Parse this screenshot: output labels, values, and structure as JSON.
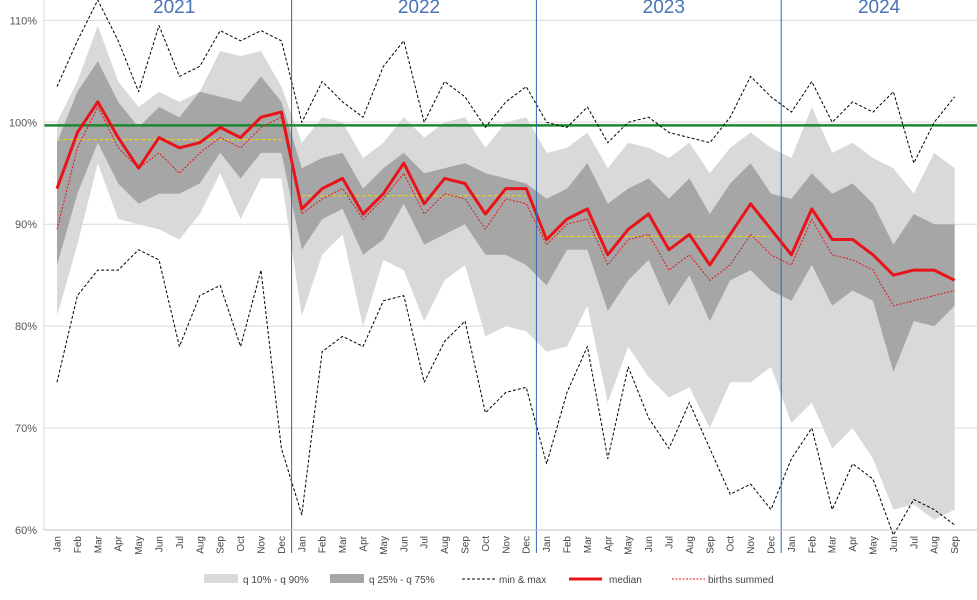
{
  "chart_data": {
    "type": "area",
    "title": "",
    "xlabel": "",
    "ylabel": "",
    "ylim": [
      60,
      112
    ],
    "y_ticks": [
      "60%",
      "70%",
      "80%",
      "90%",
      "100%",
      "110%"
    ],
    "y_tick_values": [
      60,
      70,
      80,
      90,
      100,
      110
    ],
    "years": [
      "2021",
      "2022",
      "2023",
      "2024"
    ],
    "year_dividers_after_index": [
      11,
      23,
      35
    ],
    "months": [
      "Jan",
      "Feb",
      "Mar",
      "Apr",
      "May",
      "Jun",
      "Jul",
      "Aug",
      "Sep",
      "Oct",
      "Nov",
      "Dec",
      "Jan",
      "Feb",
      "Mar",
      "Apr",
      "May",
      "Jun",
      "Jul",
      "Aug",
      "Sep",
      "Oct",
      "Nov",
      "Dec",
      "Jan",
      "Feb",
      "Mar",
      "Apr",
      "May",
      "Jun",
      "Jul",
      "Aug",
      "Sep",
      "Oct",
      "Nov",
      "Dec",
      "Jan",
      "Feb",
      "Mar",
      "Apr",
      "May",
      "Jun",
      "Jul",
      "Aug",
      "Sep"
    ],
    "reference_line": {
      "name": "100% reference",
      "value": 99.7,
      "color": "#1a8a2e"
    },
    "yearly_means": [
      {
        "year": "2021",
        "value": 98.3
      },
      {
        "year": "2022",
        "value": 92.8
      },
      {
        "year": "2023",
        "value": 88.8
      }
    ],
    "series": [
      {
        "name": "q 10% - q 90% low",
        "values": [
          81,
          88,
          96,
          90.5,
          90,
          89.5,
          88.5,
          91,
          95,
          90.5,
          94.5,
          94.5,
          81,
          87,
          89,
          80,
          86.5,
          85.5,
          80.5,
          84.5,
          86,
          79,
          80,
          79.5,
          77.5,
          78,
          82,
          72.5,
          78,
          75,
          73,
          74,
          70,
          74.5,
          74.5,
          76,
          70.5,
          72.5,
          68,
          70,
          67,
          62,
          62.5,
          61,
          62
        ]
      },
      {
        "name": "q 10% - q 90% high",
        "values": [
          100,
          104,
          109.5,
          104,
          101.5,
          103,
          102,
          103,
          107,
          106.5,
          107,
          103.5,
          98,
          100.5,
          100,
          96.5,
          98,
          100.5,
          98.5,
          100,
          100.5,
          97.5,
          100,
          100.5,
          97,
          97.5,
          99,
          95.5,
          98,
          97.5,
          96.5,
          98,
          95,
          97.5,
          99,
          97.5,
          96.5,
          101.5,
          97,
          98,
          96.5,
          95.5,
          93,
          97,
          95.5
        ]
      },
      {
        "name": "q 25% - q 75% low",
        "values": [
          86,
          93,
          98,
          94,
          92,
          93,
          93,
          94,
          97,
          94.5,
          97,
          97,
          87.5,
          90.5,
          91.5,
          87,
          88.5,
          92,
          88,
          89,
          90,
          87,
          87,
          86,
          84,
          87.5,
          87.5,
          81.5,
          84.5,
          86.5,
          82,
          85,
          80.5,
          84.5,
          85.5,
          83.5,
          82.5,
          86,
          82,
          83.5,
          82.5,
          75.5,
          80.5,
          80,
          82
        ]
      },
      {
        "name": "q 25% - q 75% high",
        "values": [
          98,
          103,
          106,
          102,
          99.5,
          101.5,
          100.5,
          103,
          102.5,
          102,
          104.5,
          102,
          95.5,
          96.5,
          97,
          93.5,
          95.5,
          97,
          95,
          95.5,
          96,
          95,
          94.5,
          94,
          92.5,
          93.5,
          96,
          92,
          93.5,
          94.5,
          92.5,
          94.5,
          91,
          94,
          96,
          93,
          92.5,
          95,
          93,
          94,
          92,
          88,
          91,
          90,
          90
        ]
      },
      {
        "name": "min & max low",
        "values": [
          74.5,
          83,
          85.5,
          85.5,
          87.5,
          86.5,
          78,
          83,
          84,
          78,
          85.5,
          68,
          61.5,
          77.5,
          79,
          78,
          82.5,
          83,
          74.5,
          78.5,
          80.5,
          71.5,
          73.5,
          74,
          66.5,
          73.5,
          78,
          67,
          76,
          71,
          68,
          72.5,
          68,
          63.5,
          64.5,
          62,
          67,
          70,
          62,
          66.5,
          65,
          59.5,
          63,
          62,
          60.5
        ]
      },
      {
        "name": "min & max high",
        "values": [
          103.5,
          108,
          112,
          108,
          103,
          109.5,
          104.5,
          105.5,
          109,
          108,
          109,
          108,
          100,
          104,
          102,
          100.5,
          105.5,
          108,
          100,
          104,
          102.5,
          99.5,
          102,
          103.5,
          100,
          99.5,
          101.5,
          98,
          100,
          100.5,
          99,
          98.5,
          98,
          100.5,
          104.5,
          102.5,
          101,
          104,
          100,
          102,
          101,
          103,
          96,
          100,
          102.5
        ]
      },
      {
        "name": "median",
        "values": [
          93.5,
          99,
          102,
          98.5,
          95.5,
          98.5,
          97.5,
          98,
          99.5,
          98.5,
          100.5,
          101,
          91.5,
          93.5,
          94.5,
          91,
          93,
          96,
          92,
          94.5,
          94,
          91,
          93.5,
          93.5,
          88.5,
          90.5,
          91.5,
          87,
          89.5,
          91,
          87.5,
          89,
          86,
          89,
          92,
          89.5,
          87,
          91.5,
          88.5,
          88.5,
          87,
          85,
          85.5,
          85.5,
          84.5
        ]
      },
      {
        "name": "births summed",
        "values": [
          89.5,
          97.5,
          101.5,
          97.5,
          95.5,
          97,
          95,
          97,
          98.5,
          97.5,
          99.5,
          100.5,
          91,
          92.5,
          93.5,
          90.5,
          92.5,
          95,
          91,
          93,
          92.5,
          89.5,
          92.5,
          92,
          88,
          90,
          90.5,
          86,
          88.5,
          89,
          85.5,
          87,
          84.5,
          86,
          89,
          87,
          86,
          90.5,
          87,
          86.5,
          85.5,
          82,
          82.5,
          83,
          83.5
        ]
      }
    ],
    "legend": {
      "position": "bottom",
      "items": [
        {
          "label": "q 10% - q 90%",
          "style": "band-light"
        },
        {
          "label": "q 25% - q 75%",
          "style": "band-dark"
        },
        {
          "label": "min & max",
          "style": "dashed-black"
        },
        {
          "label": "median",
          "style": "solid-red"
        },
        {
          "label": "births summed",
          "style": "dotted-red"
        }
      ]
    },
    "colors": {
      "band_light": "#d9d9d9",
      "band_dark": "#a6a6a6",
      "minmax": "#000000",
      "median": "#e8141a",
      "births": "#e8141a",
      "yearly_mean": "#e6d21a",
      "divider": "#2e67b5",
      "grid": "#d9d9d9"
    }
  }
}
